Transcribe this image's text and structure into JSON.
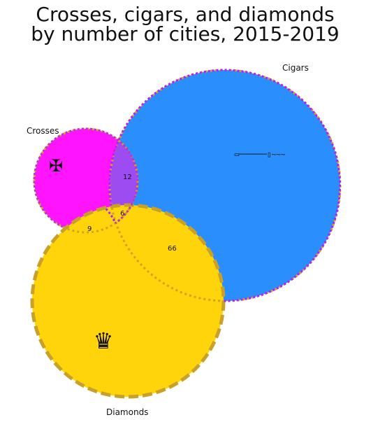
{
  "title": {
    "line1": "Crosses, cigars, and diamonds",
    "line2": "by number of cities, 2015-2019"
  },
  "sets": {
    "crosses": {
      "label": "Crosses",
      "icon": "cross-pattee-icon",
      "glyph": "✠",
      "fill": "#ff14ff",
      "outline": "#c02fd0"
    },
    "cigars": {
      "label": "Cigars",
      "icon": "cigar-icon",
      "glyph": "▭──────▯~~~",
      "fill": "#2a8ffd",
      "outline": "#b020ff"
    },
    "diamonds": {
      "label": "Diamonds",
      "icon": "queen-crown-icon",
      "glyph": "♛",
      "fill": "#ffd40a",
      "outline": "#c8a02a"
    }
  },
  "regions": {
    "crosses_cigars": "12",
    "crosses_diamonds": "9",
    "all_three": "6",
    "cigars_diamonds": "66"
  }
}
